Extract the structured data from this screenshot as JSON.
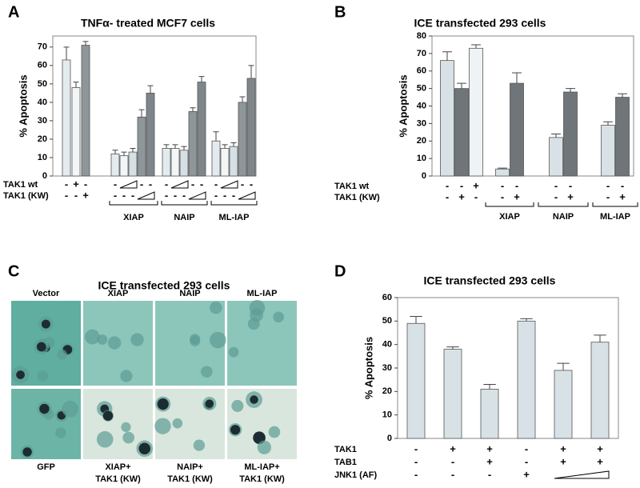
{
  "figure": {
    "panel_labels": [
      "A",
      "B",
      "C",
      "D"
    ]
  },
  "chart_data": [
    {
      "type": "bar",
      "title": "TNFα- treated MCF7 cells",
      "y_label": "% Apoptosis",
      "ylim": [
        0,
        76
      ],
      "yticks": [
        0,
        10,
        20,
        30,
        40,
        50,
        60,
        70
      ],
      "values": [
        63,
        48,
        71,
        12,
        11,
        13,
        32,
        45,
        15,
        15,
        14,
        35,
        51,
        19,
        15,
        16,
        40,
        53
      ],
      "errors": [
        7,
        3,
        2,
        2,
        2,
        2,
        4,
        4,
        2,
        2,
        2,
        2,
        3,
        5,
        2,
        2,
        3,
        7
      ],
      "colors": [
        "#e3ebef",
        "#f2f6f7",
        "#8f969a",
        "#e3ebef",
        "#f2f6f7",
        "#d6dfe3",
        "#8f969a",
        "#7f868a",
        "#e3ebef",
        "#f2f6f7",
        "#d6dfe3",
        "#8f969a",
        "#7f868a",
        "#e3ebef",
        "#f2f6f7",
        "#d6dfe3",
        "#8f969a",
        "#7f868a"
      ],
      "group_labels": [
        "XIAP",
        "NAIP",
        "ML-IAP"
      ],
      "rows": [
        {
          "label": "TAK1 wt",
          "cells": [
            "-",
            "+",
            "-",
            "-",
            null,
            null,
            "-",
            "-",
            "-",
            null,
            null,
            "-",
            "-",
            "-",
            null,
            null,
            "-",
            "-"
          ]
        },
        {
          "label": "TAK1 (KW)",
          "cells": [
            "-",
            "-",
            "+",
            "-",
            "-",
            "-",
            null,
            null,
            "-",
            "-",
            "-",
            null,
            null,
            "-",
            "-",
            "-",
            null,
            null
          ]
        }
      ]
    },
    {
      "type": "bar",
      "title": "ICE transfected 293 cells",
      "y_label": "% Apoptosis",
      "ylim": [
        0,
        80
      ],
      "yticks": [
        0,
        10,
        20,
        30,
        40,
        50,
        60,
        70,
        80
      ],
      "values": [
        66,
        50,
        73,
        4,
        53,
        22,
        48,
        29,
        45
      ],
      "errors": [
        5,
        3,
        2,
        0.5,
        6,
        2,
        2,
        2,
        2
      ],
      "colors": [
        "#d8e2e6",
        "#6f7579",
        "#eef3f5",
        "#d8e2e6",
        "#6f7579",
        "#d8e2e6",
        "#6f7579",
        "#d8e2e6",
        "#6f7579"
      ],
      "group_labels": [
        "XIAP",
        "NAIP",
        "ML-IAP"
      ],
      "rows": [
        {
          "label": "TAK1 wt",
          "cells": [
            "-",
            "-",
            "+",
            "-",
            "-",
            "-",
            "-",
            "-",
            "-"
          ]
        },
        {
          "label": "TAK1 (KW)",
          "cells": [
            "-",
            "+",
            "-",
            "-",
            "+",
            "-",
            "+",
            "-",
            "+"
          ]
        }
      ]
    },
    {
      "type": "bar",
      "title": "ICE transfected 293 cells",
      "y_label": "% Apoptosis",
      "ylim": [
        0,
        60
      ],
      "yticks": [
        0,
        10,
        20,
        30,
        40,
        50,
        60
      ],
      "values": [
        49,
        38,
        21,
        50,
        29,
        41
      ],
      "errors": [
        3,
        1,
        2,
        1,
        3,
        3
      ],
      "colors": [
        "#d8e2e6",
        "#d8e2e6",
        "#d8e2e6",
        "#d8e2e6",
        "#d8e2e6",
        "#d8e2e6"
      ],
      "group_labels": [],
      "rows": [
        {
          "label": "TAK1",
          "cells": [
            "-",
            "+",
            "+",
            "-",
            "+",
            "+"
          ]
        },
        {
          "label": "TAB1",
          "cells": [
            "-",
            "-",
            "+",
            "-",
            "+",
            "+"
          ]
        },
        {
          "label": "JNK1 (AF)",
          "cells": [
            "-",
            "-",
            "-",
            "+",
            null,
            null
          ]
        }
      ]
    }
  ],
  "micrographs": {
    "title": "ICE transfected 293 cells",
    "top_labels": [
      "Vector",
      "XIAP",
      "NAIP",
      "ML-IAP"
    ],
    "bottom_labels": [
      [
        "GFP"
      ],
      [
        "XIAP+",
        "TAK1 (KW)"
      ],
      [
        "NAIP+",
        "TAK1 (KW)"
      ],
      [
        "ML-IAP+",
        "TAK1 (KW)"
      ]
    ]
  }
}
